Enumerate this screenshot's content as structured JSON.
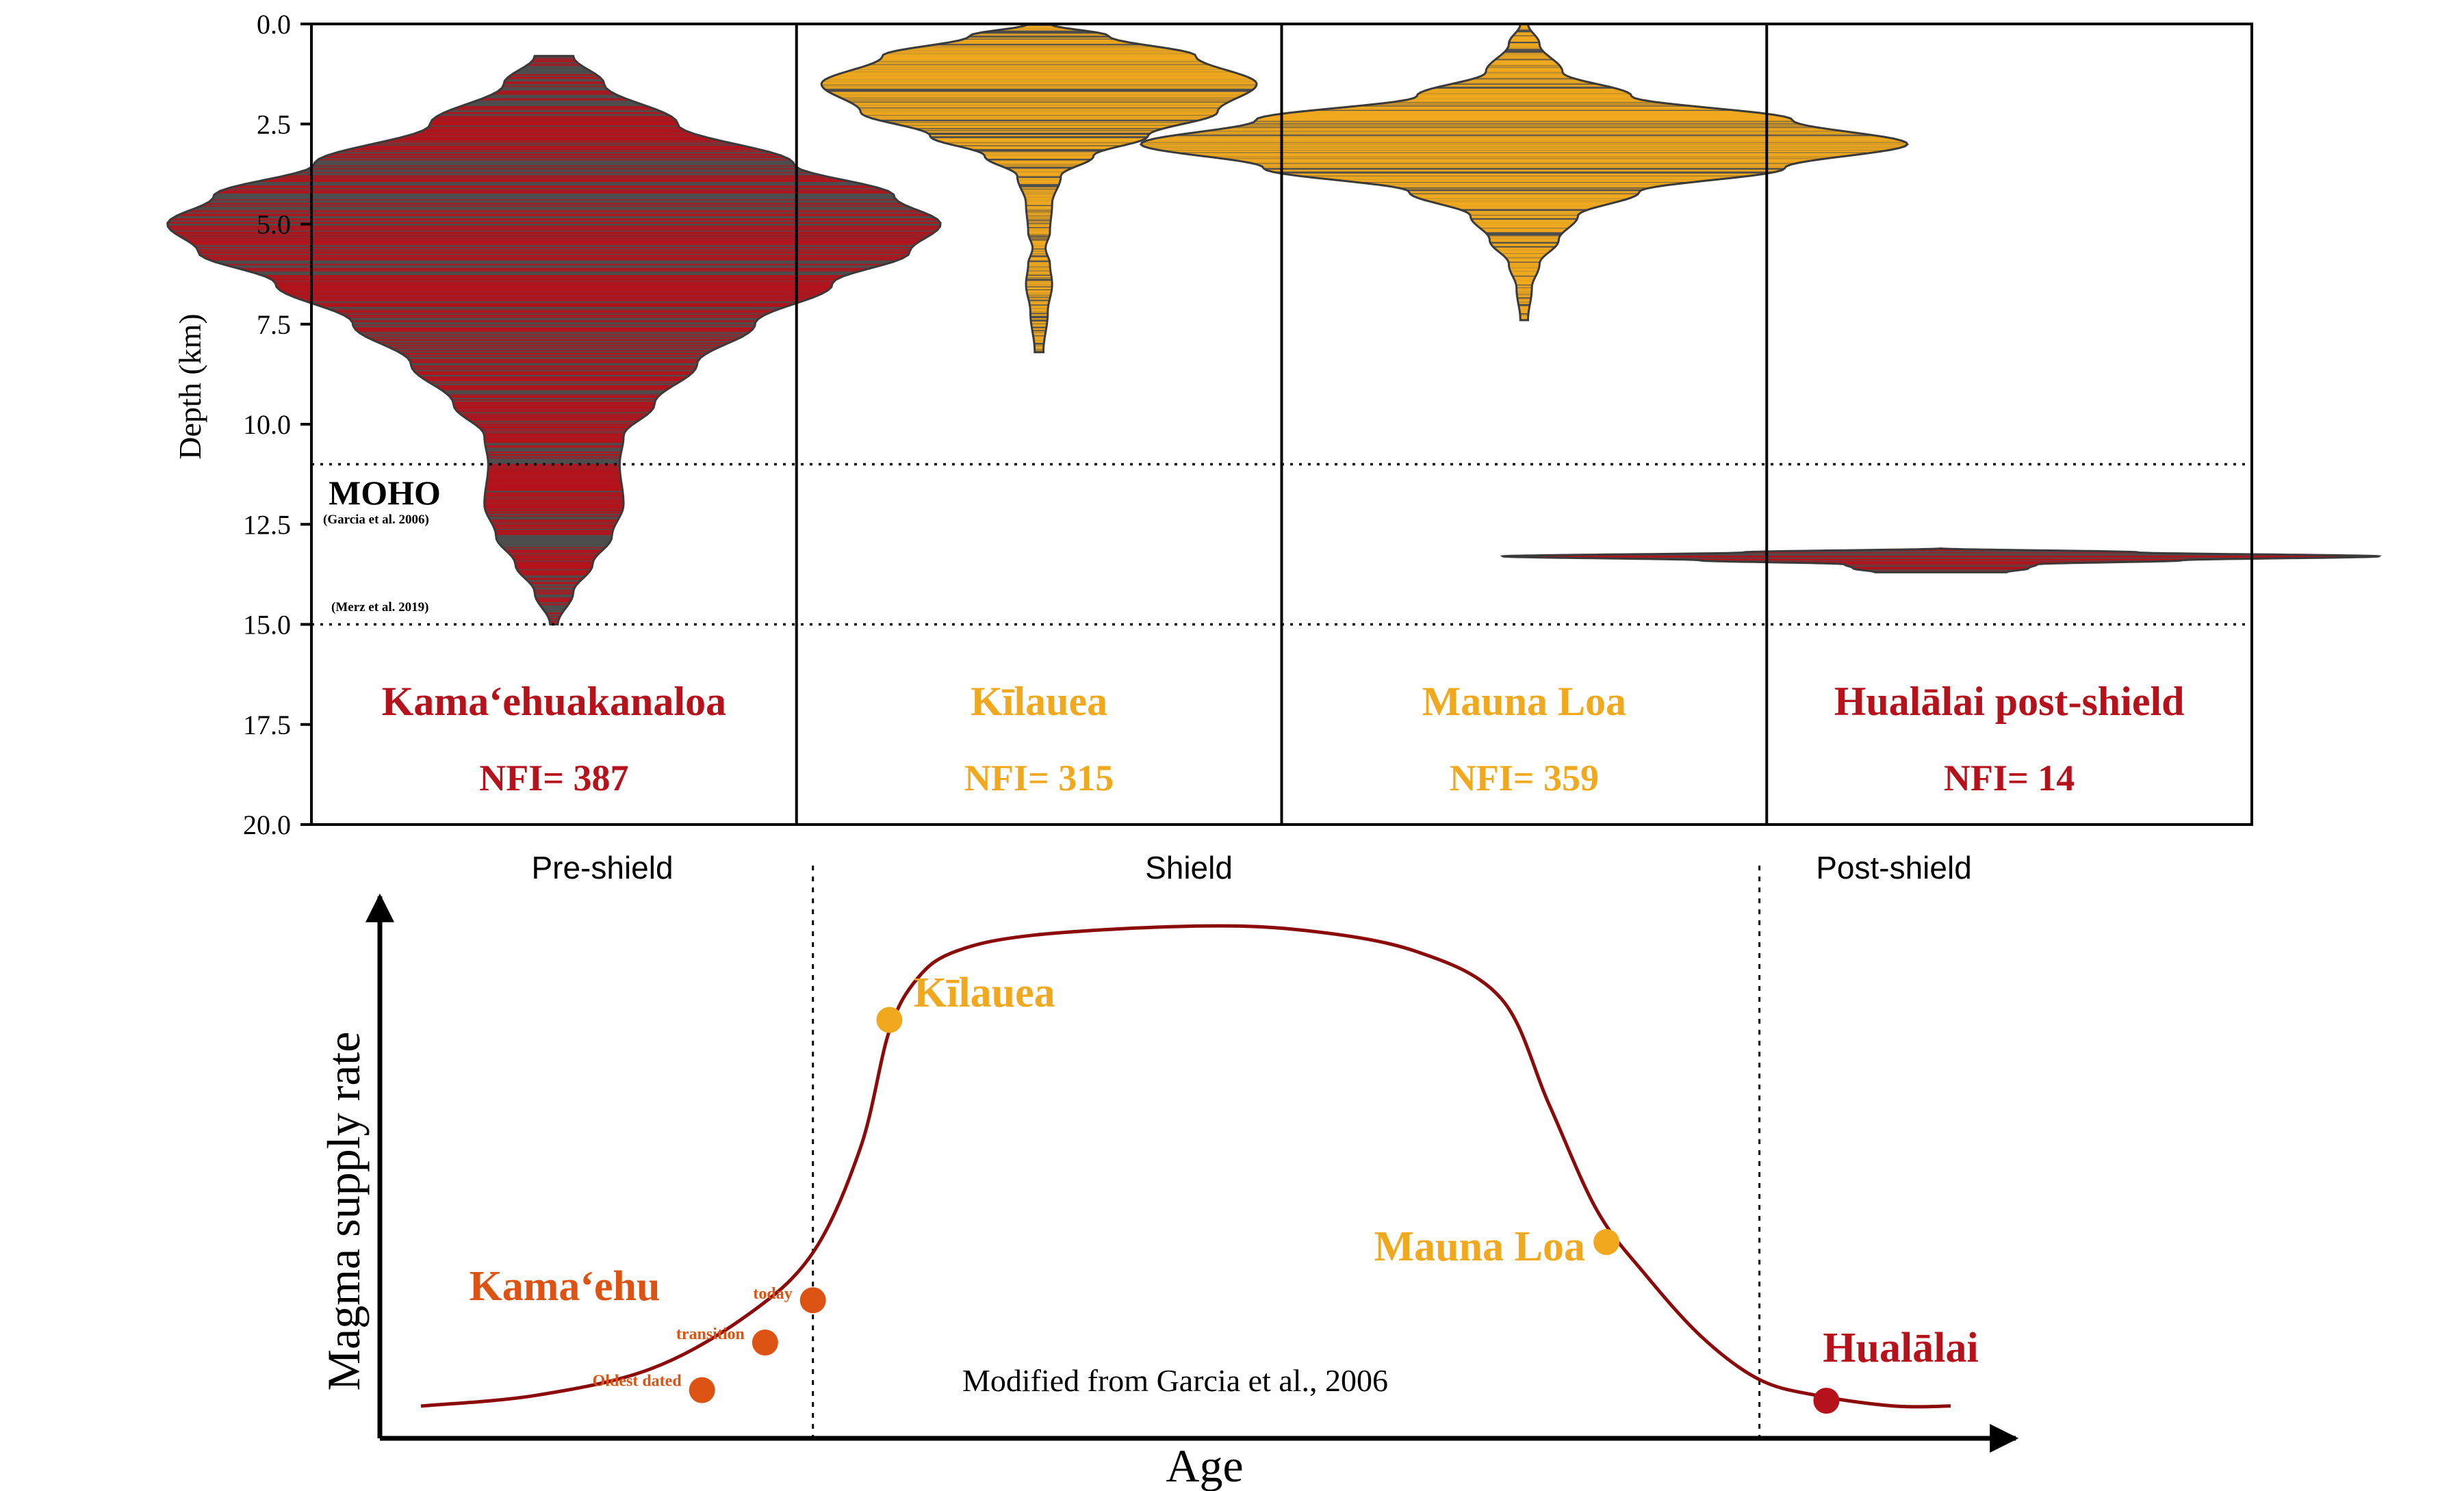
{
  "colors": {
    "red": "#b5121b",
    "gold": "#f0a91e",
    "orange": "#dc5313",
    "violin_body": "#4d4d4d",
    "curve": "#8b0b0b",
    "axis": "#000000"
  },
  "chart_data": [
    {
      "type": "violin",
      "ylabel": "Depth (km)",
      "ylim": [
        0.0,
        20.0
      ],
      "y_inverted": true,
      "yticks": [
        "0.0",
        "2.5",
        "5.0",
        "7.5",
        "10.0",
        "12.5",
        "15.0",
        "17.5",
        "20.0"
      ],
      "reference_lines": [
        {
          "depth": 11.0,
          "label": "MOHO",
          "source": "(Garcia et al. 2006)"
        },
        {
          "depth": 15.0,
          "label": "",
          "source": "(Merz et al. 2019)"
        }
      ],
      "panels": [
        {
          "name": "Kamaʻehuakanaloa",
          "nfi_label": "NFI= 387",
          "nfi": 387,
          "color": "red",
          "depth_range": [
            0.8,
            15.0
          ],
          "max_width": 1.0,
          "profile": [
            [
              0.8,
              0.05
            ],
            [
              1.5,
              0.13
            ],
            [
              2.5,
              0.32
            ],
            [
              3.5,
              0.62
            ],
            [
              4.3,
              0.88
            ],
            [
              5.0,
              1.0
            ],
            [
              5.7,
              0.92
            ],
            [
              6.5,
              0.72
            ],
            [
              7.5,
              0.52
            ],
            [
              8.5,
              0.37
            ],
            [
              9.5,
              0.26
            ],
            [
              10.3,
              0.18
            ],
            [
              11.0,
              0.17
            ],
            [
              12.0,
              0.18
            ],
            [
              12.8,
              0.15
            ],
            [
              13.5,
              0.1
            ],
            [
              14.2,
              0.05
            ],
            [
              15.0,
              0.01
            ]
          ]
        },
        {
          "name": "Kīlauea",
          "nfi_label": "NFI= 315",
          "nfi": 315,
          "color": "gold",
          "depth_range": [
            0.0,
            8.2
          ],
          "max_width": 1.0,
          "profile": [
            [
              0.0,
              0.05
            ],
            [
              0.3,
              0.32
            ],
            [
              0.8,
              0.72
            ],
            [
              1.5,
              1.0
            ],
            [
              2.2,
              0.82
            ],
            [
              2.8,
              0.5
            ],
            [
              3.3,
              0.25
            ],
            [
              3.8,
              0.1
            ],
            [
              4.5,
              0.06
            ],
            [
              5.2,
              0.05
            ],
            [
              5.6,
              0.03
            ],
            [
              6.0,
              0.05
            ],
            [
              6.5,
              0.06
            ],
            [
              7.2,
              0.04
            ],
            [
              8.2,
              0.02
            ]
          ]
        },
        {
          "name": "Mauna Loa",
          "nfi_label": "NFI= 359",
          "nfi": 359,
          "color": "gold",
          "depth_range": [
            0.0,
            7.4
          ],
          "max_width": 1.0,
          "profile": [
            [
              0.0,
              0.01
            ],
            [
              0.5,
              0.04
            ],
            [
              1.2,
              0.1
            ],
            [
              1.8,
              0.28
            ],
            [
              2.4,
              0.7
            ],
            [
              3.0,
              1.0
            ],
            [
              3.6,
              0.68
            ],
            [
              4.2,
              0.3
            ],
            [
              4.8,
              0.14
            ],
            [
              5.4,
              0.09
            ],
            [
              6.0,
              0.04
            ],
            [
              6.6,
              0.02
            ],
            [
              7.4,
              0.01
            ]
          ]
        },
        {
          "name": "Hualālai post-shield",
          "nfi_label": "NFI= 14",
          "nfi": 14,
          "color": "red",
          "depth_range": [
            13.1,
            13.7
          ],
          "max_width": 1.0,
          "profile": [
            [
              13.1,
              0.0
            ],
            [
              13.2,
              0.45
            ],
            [
              13.3,
              1.0
            ],
            [
              13.4,
              0.55
            ],
            [
              13.5,
              0.22
            ],
            [
              13.6,
              0.2
            ],
            [
              13.7,
              0.15
            ]
          ]
        }
      ]
    },
    {
      "type": "line",
      "title": "",
      "xlabel": "Age",
      "ylabel": "Magma supply rate",
      "note": "Modified from Garcia et al., 2006",
      "stages": [
        "Pre-shield",
        "Shield",
        "Post-shield"
      ],
      "curve": [
        [
          0.0,
          0.03
        ],
        [
          6.0,
          0.05
        ],
        [
          12.0,
          0.1
        ],
        [
          17.0,
          0.2
        ],
        [
          20.5,
          0.32
        ],
        [
          23.0,
          0.52
        ],
        [
          24.5,
          0.74
        ],
        [
          26.0,
          0.84
        ],
        [
          28.0,
          0.89
        ],
        [
          32.0,
          0.92
        ],
        [
          40.0,
          0.937
        ],
        [
          46.0,
          0.93
        ],
        [
          52.0,
          0.89
        ],
        [
          56.5,
          0.8
        ],
        [
          59.0,
          0.6
        ],
        [
          61.5,
          0.4
        ],
        [
          64.0,
          0.28
        ],
        [
          67.0,
          0.16
        ],
        [
          70.0,
          0.08
        ],
        [
          73.0,
          0.05
        ],
        [
          77.0,
          0.03
        ],
        [
          80.0,
          0.03
        ]
      ],
      "stage_boundaries": [
        20.5,
        70.0
      ],
      "points": [
        {
          "label": "Oldest dated",
          "x": 14.7,
          "y": 0.06,
          "color": "orange"
        },
        {
          "label": "transition",
          "x": 18.0,
          "y": 0.15,
          "color": "orange"
        },
        {
          "label": "today",
          "x": 20.5,
          "y": 0.23,
          "color": "orange"
        },
        {
          "label": "Kīlauea",
          "x": 24.5,
          "y": 0.76,
          "color": "gold"
        },
        {
          "label": "Mauna Loa",
          "x": 62.0,
          "y": 0.34,
          "color": "gold"
        },
        {
          "label": "Hualālai",
          "x": 73.5,
          "y": 0.04,
          "color": "red"
        }
      ],
      "series_labels": [
        {
          "label": "Kamaʻehu",
          "color": "orange"
        },
        {
          "label": "Kīlauea",
          "color": "gold"
        },
        {
          "label": "Mauna Loa",
          "color": "gold"
        },
        {
          "label": "Hualālai",
          "color": "red"
        }
      ]
    }
  ]
}
